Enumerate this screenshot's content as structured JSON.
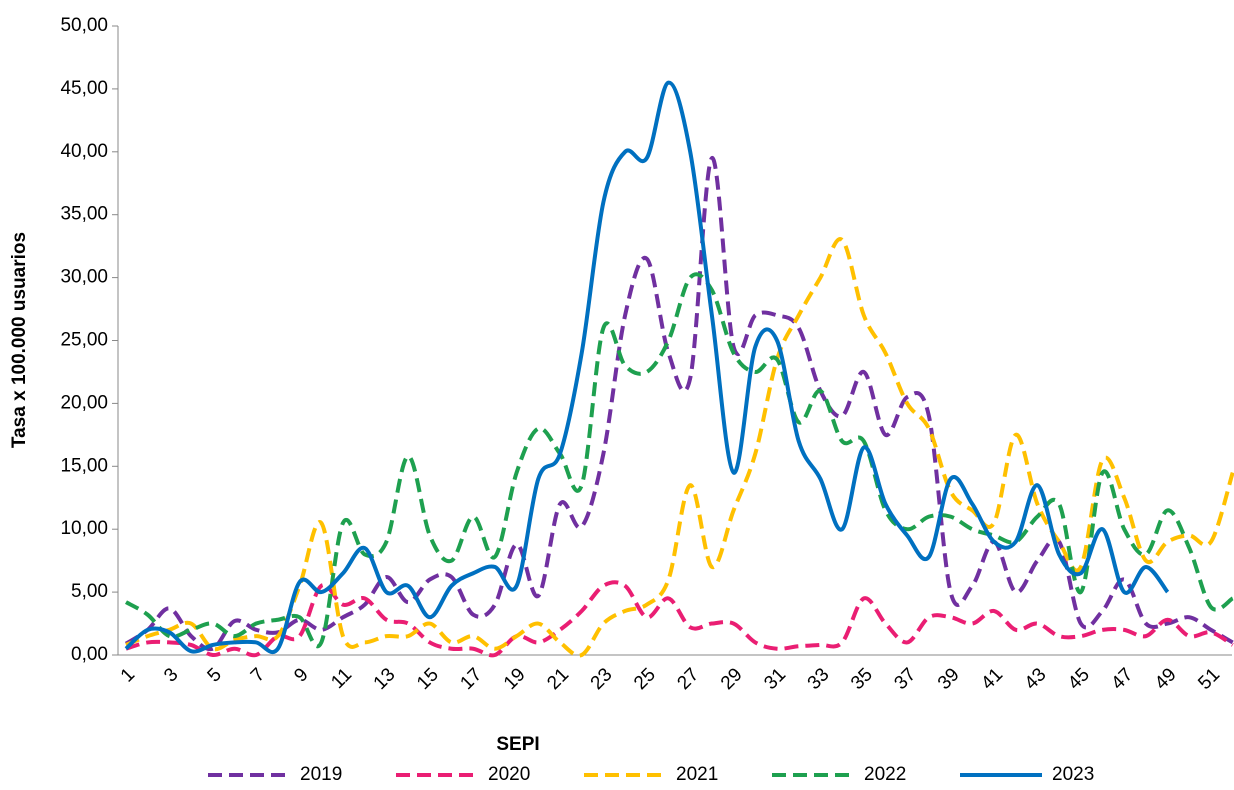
{
  "chart_data": {
    "type": "line",
    "x_label": "SEPI",
    "y_label": "Tasa x 100.000 usuarios",
    "categories": [
      "1",
      null,
      "3",
      null,
      "5",
      null,
      "7",
      null,
      "9",
      null,
      "11",
      null,
      "13",
      null,
      "15",
      null,
      "17",
      null,
      "19",
      null,
      "21",
      null,
      "23",
      null,
      "25",
      null,
      "27",
      null,
      "29",
      null,
      "31",
      null,
      "33",
      null,
      "35",
      null,
      "37",
      null,
      "39",
      null,
      "41",
      null,
      "43",
      null,
      "45",
      null,
      "47",
      null,
      "49",
      null,
      "51",
      null
    ],
    "ylim": [
      0,
      50
    ],
    "yticks": [
      {
        "value": 0,
        "label": "0,00"
      },
      {
        "value": 5,
        "label": "5,00"
      },
      {
        "value": 10,
        "label": "10,00"
      },
      {
        "value": 15,
        "label": "15,00"
      },
      {
        "value": 20,
        "label": "20,00"
      },
      {
        "value": 25,
        "label": "25,00"
      },
      {
        "value": 30,
        "label": "30,00"
      },
      {
        "value": 35,
        "label": "35,00"
      },
      {
        "value": 40,
        "label": "40,00"
      },
      {
        "value": 45,
        "label": "45,00"
      },
      {
        "value": 50,
        "label": "50,00"
      }
    ],
    "legend": "bottom",
    "series": [
      {
        "name": "2019",
        "color": "#7030a0",
        "dash": true,
        "values": [
          0.9,
          2,
          3.7,
          1.5,
          0.5,
          2.7,
          2,
          1.8,
          2.8,
          2,
          3,
          4,
          6.2,
          4.2,
          6,
          6.2,
          3.2,
          4,
          8.8,
          4.7,
          12,
          10.2,
          16,
          27,
          31.5,
          24,
          22,
          39.5,
          24.5,
          27,
          27,
          26,
          21,
          19,
          22.5,
          17.5,
          20.5,
          19,
          5,
          5.5,
          9,
          5,
          7.5,
          9,
          2.5,
          3.5,
          6,
          2.5,
          2.5,
          3,
          2,
          1
        ]
      },
      {
        "name": "2020",
        "color": "#ea1e73",
        "dash": true,
        "values": [
          0.5,
          1,
          1,
          0.8,
          0,
          0.5,
          0,
          1.5,
          1.5,
          5.5,
          4,
          4.5,
          2.8,
          2.5,
          1,
          0.5,
          0.5,
          0,
          1.5,
          1,
          2,
          3.5,
          5.5,
          5.5,
          3,
          4.5,
          2.2,
          2.5,
          2.5,
          1,
          0.5,
          0.7,
          0.8,
          1,
          4.5,
          2.5,
          1,
          3,
          3,
          2.5,
          3.5,
          2,
          2.5,
          1.5,
          1.5,
          2,
          2,
          1.5,
          2.8,
          1.5,
          1.8,
          0.8
        ]
      },
      {
        "name": "2021",
        "color": "#ffc000",
        "dash": true,
        "values": [
          0.8,
          1.5,
          2,
          2.5,
          0.5,
          1.2,
          1.5,
          1.5,
          5.5,
          10.5,
          1.5,
          1,
          1.5,
          1.5,
          2.5,
          1,
          1.5,
          0.5,
          1.5,
          2.5,
          1,
          0,
          2.5,
          3.5,
          4,
          6,
          13.5,
          7,
          11.5,
          16,
          23.5,
          27,
          30,
          33,
          27,
          24,
          20,
          18,
          13,
          11.5,
          10.5,
          17.5,
          12,
          9,
          7,
          15.5,
          12.5,
          7.5,
          9,
          9.5,
          9,
          14.5
        ]
      },
      {
        "name": "2022",
        "color": "#1ea04f",
        "dash": true,
        "values": [
          4.2,
          3.2,
          1.5,
          2,
          2.5,
          1.5,
          2.5,
          2.8,
          3,
          1,
          10.5,
          8,
          9,
          15.8,
          9.5,
          7.5,
          11,
          7.8,
          14.5,
          18,
          16,
          13.5,
          26,
          23,
          22.5,
          25,
          30,
          29,
          24,
          22.5,
          23.5,
          18.5,
          21,
          17,
          17,
          11.5,
          10,
          11,
          11,
          10,
          9.5,
          9,
          11,
          12,
          5,
          14.5,
          10,
          8,
          11.5,
          8.5,
          3.8,
          4.5
        ]
      },
      {
        "name": "2023",
        "color": "#0070c0",
        "dash": false,
        "values": [
          0.5,
          2,
          1.8,
          0.3,
          0.8,
          1,
          1,
          0.5,
          5.8,
          5,
          6.5,
          8.5,
          5,
          5.5,
          3,
          5.5,
          6.5,
          7,
          5.5,
          14,
          16,
          24,
          36,
          40,
          39.5,
          45.5,
          40,
          27,
          14.5,
          24.5,
          25,
          17,
          14,
          10,
          16.5,
          12,
          9.5,
          7.8,
          14,
          12,
          9,
          9,
          13.5,
          8,
          6.5,
          10,
          5,
          7,
          5,
          null,
          null,
          null
        ]
      }
    ]
  }
}
